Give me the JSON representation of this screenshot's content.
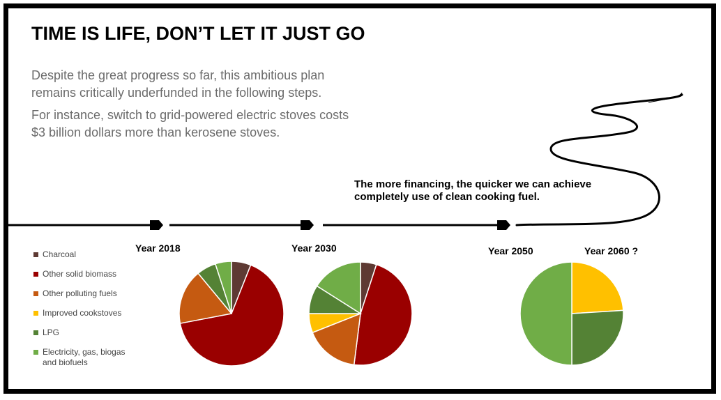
{
  "title": "TIME IS LIFE, DON’T LET IT JUST GO",
  "paragraph1": "Despite the great progress so far, this ambitious plan remains critically underfunded in the following steps.",
  "paragraph2": "For instance, switch to grid-powered electric stoves costs $3 billion dollars more than kerosene stoves.",
  "callout": "The more financing, the quicker we can achieve completely use of clean cooking fuel.",
  "legend": [
    {
      "label": "Charcoal",
      "color": "#5e3a33"
    },
    {
      "label": "Other solid biomass",
      "color": "#9a0000"
    },
    {
      "label": "Other polluting fuels",
      "color": "#c55a11"
    },
    {
      "label": "Improved cookstoves",
      "color": "#ffc000"
    },
    {
      "label": "LPG",
      "color": "#548235"
    },
    {
      "label": "Electricity, gas, biogas and biofuels",
      "color": "#70ad47"
    }
  ],
  "chart_data": [
    {
      "type": "pie",
      "title": "Year 2018",
      "categories": [
        "Charcoal",
        "Other solid biomass",
        "Other polluting fuels",
        "Improved cookstoves",
        "LPG",
        "Electricity, gas, biogas and biofuels"
      ],
      "values": [
        6,
        66,
        17,
        0,
        6,
        5
      ]
    },
    {
      "type": "pie",
      "title": "Year 2030",
      "categories": [
        "Charcoal",
        "Other solid biomass",
        "Other polluting fuels",
        "Improved cookstoves",
        "LPG",
        "Electricity, gas, biogas and biofuels"
      ],
      "values": [
        5,
        47,
        17,
        6,
        9,
        16
      ]
    },
    {
      "type": "pie",
      "title": "Year 2050",
      "categories": [
        "Improved cookstoves",
        "LPG",
        "Electricity, gas, biogas and biofuels"
      ],
      "values": [
        24,
        26,
        50
      ]
    }
  ],
  "year_2060_label": "Year 2060 ?"
}
